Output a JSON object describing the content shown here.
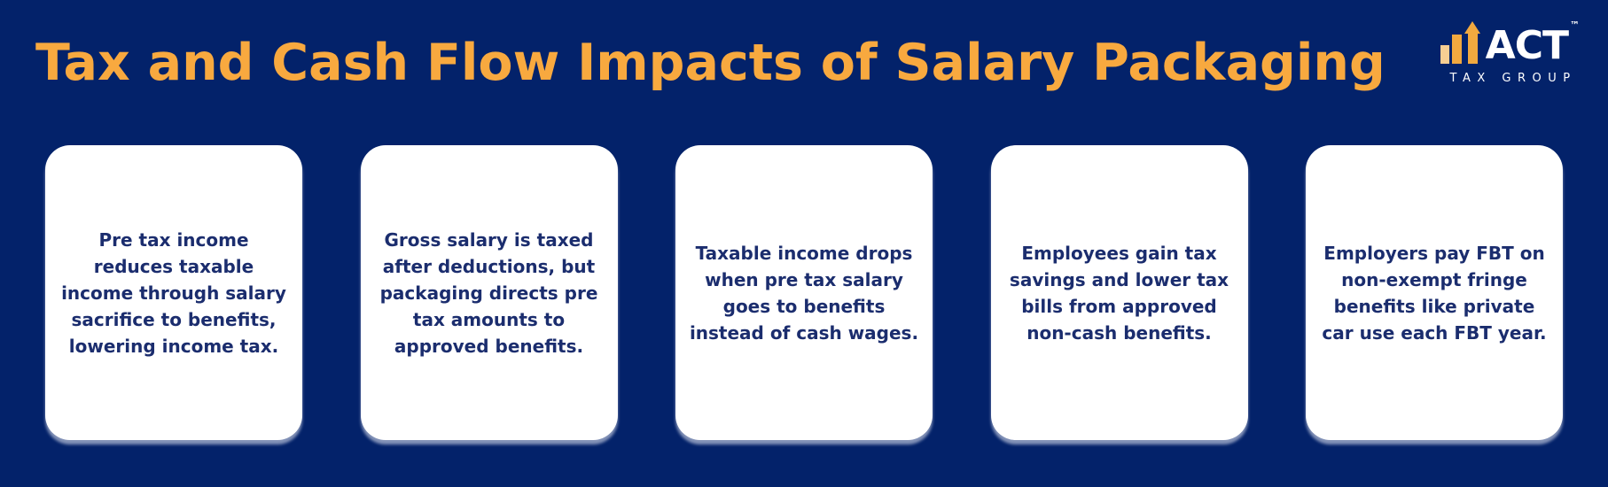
{
  "page": {
    "background_color": "#03226A"
  },
  "header": {
    "title": "Tax and Cash Flow Impacts of Salary Packaging",
    "title_color": "#F8A93F"
  },
  "logo": {
    "wordmark": "ACT",
    "trademark": "™",
    "subtitle": "TAX GROUP",
    "icon": "rising-bar-chart-arrow-icon",
    "colors": {
      "bar_light": "#F7CE93",
      "bar_orange": "#F2A93F",
      "text": "#FFFFFF"
    }
  },
  "cards": [
    {
      "text": "Pre tax income reduces taxable income through salary sacrifice to benefits, lowering income tax."
    },
    {
      "text": "Gross salary is taxed after deductions, but packaging directs pre tax amounts to approved benefits."
    },
    {
      "text": "Taxable income drops when pre tax salary goes to benefits instead of cash wages."
    },
    {
      "text": "Employees gain tax savings and lower tax bills from approved non-cash benefits."
    },
    {
      "text": "Employers pay FBT on non-exempt fringe benefits like private car use each FBT year."
    }
  ],
  "card_style": {
    "background": "#FFFFFF",
    "text_color": "#1B2D6E"
  }
}
